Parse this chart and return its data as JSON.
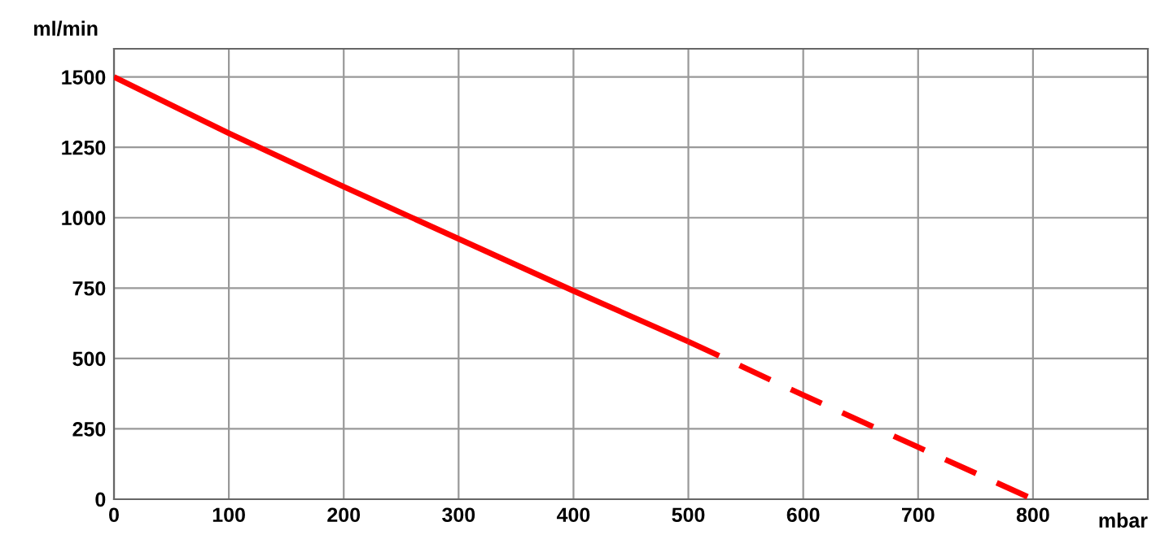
{
  "chart_data": {
    "type": "line",
    "xlabel": "mbar",
    "ylabel": "ml/min",
    "xlim": [
      0,
      900
    ],
    "ylim": [
      0,
      1600
    ],
    "xticks": [
      0,
      100,
      200,
      300,
      400,
      500,
      600,
      700,
      800
    ],
    "yticks": [
      0,
      250,
      500,
      750,
      1000,
      1250,
      1500
    ],
    "grid": true,
    "marker": "none",
    "series": [
      {
        "color": "#ff0000",
        "line_style": "solid",
        "x": [
          0,
          100,
          200,
          300,
          400,
          500
        ],
        "values": [
          1500,
          1300,
          1110,
          925,
          740,
          560
        ]
      },
      {
        "color": "#ff0000",
        "line_style": "dashed",
        "x": [
          500,
          600,
          700,
          800
        ],
        "values": [
          560,
          370,
          185,
          0
        ]
      }
    ]
  }
}
